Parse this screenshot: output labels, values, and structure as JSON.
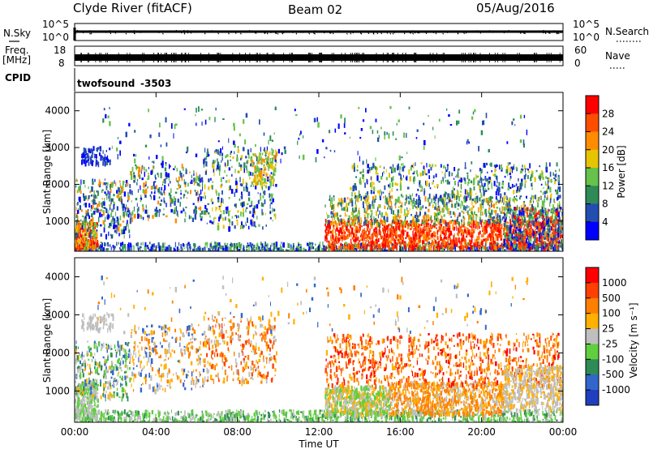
{
  "header": {
    "station": "Clyde River (fitACF)",
    "beam": "Beam 02",
    "date": "05/Aug/2016"
  },
  "noise_panel": {
    "left_label_top": "N.Sky",
    "left_ticks": [
      "10^5",
      "10^0"
    ],
    "right_label": "N.Search",
    "right_ticks": [
      "10^5",
      "10^0"
    ]
  },
  "freq_panel": {
    "left_label_line1": "Freq.",
    "left_label_line2": "[MHz]",
    "left_ticks": [
      "18",
      "8"
    ],
    "right_label": "Nave",
    "right_ticks": [
      "60",
      "0"
    ]
  },
  "cpid_panel": {
    "label": "CPID",
    "program": "twofsound",
    "cpid": "-3503"
  },
  "chart_data": [
    {
      "type": "heatmap",
      "name": "power",
      "ylabel": "Slant Range [km]",
      "ylim": [
        180,
        4500
      ],
      "yticks": [
        "1000",
        "2000",
        "3000",
        "4000"
      ],
      "colorbar": {
        "label": "Power [dB]",
        "ticks": [
          "4",
          "8",
          "12",
          "16",
          "20",
          "24",
          "28"
        ],
        "colors": [
          "#0000ff",
          "#234db0",
          "#2e8b57",
          "#66c24a",
          "#e6c400",
          "#ff8c00",
          "#ff4d00",
          "#ff0000"
        ]
      }
    },
    {
      "type": "heatmap",
      "name": "velocity",
      "ylabel": "Slant Range [km]",
      "ylim": [
        180,
        4500
      ],
      "yticks": [
        "1000",
        "2000",
        "3000",
        "4000"
      ],
      "colorbar": {
        "label": "Velocity [m s⁻¹]",
        "ticks": [
          "1000",
          "500",
          "100",
          "25",
          "-25",
          "-100",
          "-500",
          "-1000"
        ],
        "colors": [
          "#1f3fbf",
          "#3366cc",
          "#2e8b57",
          "#5fcf3f",
          "#bfbfbf",
          "#ffb000",
          "#ff7f00",
          "#ff4000",
          "#ff0000"
        ]
      }
    }
  ],
  "x_axis": {
    "label": "Time UT",
    "ticks": [
      "00:00",
      "04:00",
      "08:00",
      "12:00",
      "16:00",
      "20:00",
      "00:00"
    ]
  }
}
